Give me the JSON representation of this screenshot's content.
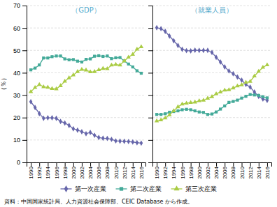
{
  "chart_data": [
    {
      "type": "line",
      "title": "（GDP）",
      "ylabel": "（％）",
      "x": [
        1990,
        1991,
        1992,
        1993,
        1994,
        1995,
        1996,
        1997,
        1998,
        1999,
        2000,
        2001,
        2002,
        2003,
        2004,
        2005,
        2006,
        2007,
        2008,
        2009,
        2010,
        2011,
        2012,
        2013,
        2014,
        2015,
        2016
      ],
      "xlim": [
        1989,
        2017
      ],
      "xticks": [
        1990,
        1992,
        1994,
        1996,
        1998,
        2000,
        2002,
        2004,
        2006,
        2008,
        2010,
        2012,
        2014,
        2016
      ],
      "ylim": [
        0,
        70
      ],
      "yticks": [
        0,
        10,
        20,
        30,
        40,
        50,
        60,
        70
      ],
      "grid": true,
      "legend": "bottom",
      "annotations": [
        "資料：中国国家統計局、人力資源社会保障部、CEIC Database から作成。"
      ],
      "series": [
        {
          "name": "第一次産業",
          "color": "#6666aa",
          "marker": "diamond",
          "values": [
            27.1,
            24.5,
            21.8,
            19.7,
            19.9,
            19.9,
            19.7,
            18.3,
            17.6,
            16.5,
            15.0,
            14.4,
            13.7,
            12.8,
            13.4,
            12.1,
            11.1,
            10.8,
            10.7,
            10.3,
            9.6,
            9.5,
            9.4,
            9.3,
            9.1,
            8.8,
            8.6
          ]
        },
        {
          "name": "第二次産業",
          "color": "#44aa99",
          "marker": "square",
          "values": [
            41.3,
            42.1,
            43.5,
            46.6,
            46.6,
            47.2,
            47.5,
            47.5,
            46.2,
            45.8,
            45.9,
            45.2,
            44.8,
            46.0,
            46.2,
            47.4,
            47.6,
            47.3,
            47.5,
            46.3,
            46.7,
            46.8,
            45.3,
            43.9,
            42.6,
            40.9,
            39.8
          ]
        },
        {
          "name": "第三次産業",
          "color": "#aacc44",
          "marker": "triangle",
          "values": [
            31.5,
            33.4,
            34.7,
            33.7,
            33.5,
            32.9,
            32.8,
            34.2,
            36.2,
            37.7,
            39.0,
            40.5,
            41.5,
            41.2,
            40.4,
            40.5,
            41.3,
            41.9,
            41.8,
            43.4,
            43.7,
            43.4,
            45.3,
            46.9,
            48.2,
            50.5,
            51.6
          ]
        }
      ]
    },
    {
      "type": "line",
      "title": "（就業人員）",
      "x": [
        1990,
        1991,
        1992,
        1993,
        1994,
        1995,
        1996,
        1997,
        1998,
        1999,
        2000,
        2001,
        2002,
        2003,
        2004,
        2005,
        2006,
        2007,
        2008,
        2009,
        2010,
        2011,
        2012,
        2013,
        2014,
        2015,
        2016
      ],
      "xlim": [
        1989,
        2017
      ],
      "xticks": [
        1990,
        1992,
        1994,
        1996,
        1998,
        2000,
        2002,
        2004,
        2006,
        2008,
        2010,
        2012,
        2014,
        2016
      ],
      "ylim": [
        0,
        70
      ],
      "yticks": [
        0,
        10,
        20,
        30,
        40,
        50,
        60,
        70
      ],
      "grid": true,
      "tick_labels": "x",
      "series": [
        {
          "color": "#6666aa",
          "marker": "diamond",
          "values": [
            60.1,
            59.7,
            58.5,
            56.4,
            54.3,
            52.2,
            50.5,
            49.9,
            49.8,
            50.1,
            50.0,
            50.0,
            50.0,
            49.1,
            46.9,
            44.8,
            42.6,
            40.8,
            39.6,
            38.1,
            36.7,
            34.8,
            33.6,
            31.4,
            29.5,
            28.3,
            27.7
          ]
        },
        {
          "color": "#44aa99",
          "marker": "square",
          "values": [
            21.4,
            21.4,
            21.7,
            22.4,
            22.7,
            23.0,
            23.5,
            23.7,
            23.5,
            23.0,
            22.5,
            22.3,
            21.4,
            21.6,
            22.5,
            23.8,
            25.2,
            26.8,
            27.2,
            27.8,
            28.7,
            29.5,
            30.3,
            30.1,
            29.9,
            29.3,
            28.8
          ]
        },
        {
          "color": "#aacc44",
          "marker": "triangle",
          "values": [
            18.5,
            18.9,
            19.8,
            21.2,
            23.0,
            24.8,
            26.0,
            26.4,
            26.7,
            26.9,
            27.5,
            27.7,
            28.6,
            29.3,
            30.6,
            31.4,
            32.2,
            32.4,
            33.2,
            34.1,
            34.6,
            35.7,
            36.1,
            38.5,
            40.6,
            42.4,
            43.5
          ]
        }
      ]
    }
  ]
}
